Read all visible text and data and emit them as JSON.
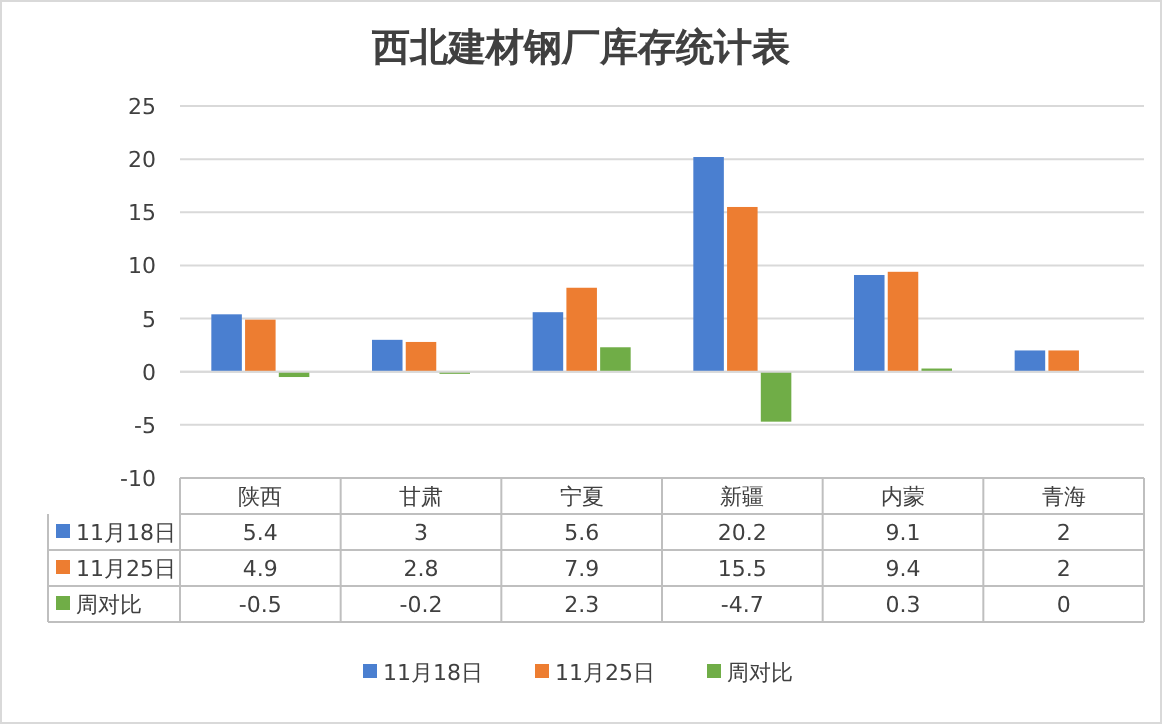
{
  "chart_data": {
    "type": "bar",
    "title": "西北建材钢厂库存统计表",
    "categories": [
      "陕西",
      "甘肃",
      "宁夏",
      "新疆",
      "内蒙",
      "青海"
    ],
    "series": [
      {
        "name": "11月18日",
        "color": "#4a7fd0",
        "values": [
          5.4,
          3,
          5.6,
          20.2,
          9.1,
          2
        ]
      },
      {
        "name": "11月25日",
        "color": "#ed7d31",
        "values": [
          4.9,
          2.8,
          7.9,
          15.5,
          9.4,
          2
        ]
      },
      {
        "name": "周对比",
        "color": "#70ad47",
        "values": [
          -0.5,
          -0.2,
          2.3,
          -4.7,
          0.3,
          0
        ]
      }
    ],
    "ylim": [
      -10,
      25
    ],
    "yticks": [
      -10,
      -5,
      0,
      5,
      10,
      15,
      20,
      25
    ],
    "grid": "y",
    "legend": "bottom",
    "data_labels": true
  }
}
